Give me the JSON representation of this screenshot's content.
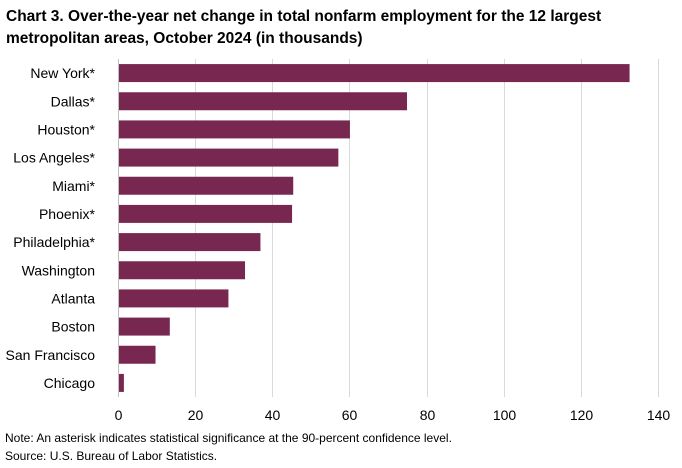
{
  "chart_data": {
    "type": "bar",
    "orientation": "horizontal",
    "title": "Chart 3. Over-the-year net change in total nonfarm employment for the 12 largest metropolitan areas, October 2024 (in thousands)",
    "categories": [
      "New York*",
      "Dallas*",
      "Houston*",
      "Los Angeles*",
      "Miami*",
      "Phoenix*",
      "Philadelphia*",
      "Washington",
      "Atlanta",
      "Boston",
      "San Francisco",
      "Chicago"
    ],
    "values": [
      132.5,
      74.8,
      60.0,
      57.0,
      45.3,
      45.0,
      36.8,
      32.8,
      28.5,
      13.3,
      9.6,
      1.4
    ],
    "xlim": [
      0,
      140
    ],
    "xticks": [
      "0",
      "20",
      "40",
      "60",
      "80",
      "100",
      "120",
      "140"
    ],
    "xlabel": "",
    "ylabel": "",
    "grid": true,
    "bar_color": "#782850"
  },
  "notes": {
    "note": "Note: An asterisk indicates statistical significance at the 90-percent confidence level.",
    "source": "Source: U.S. Bureau of Labor Statistics."
  }
}
